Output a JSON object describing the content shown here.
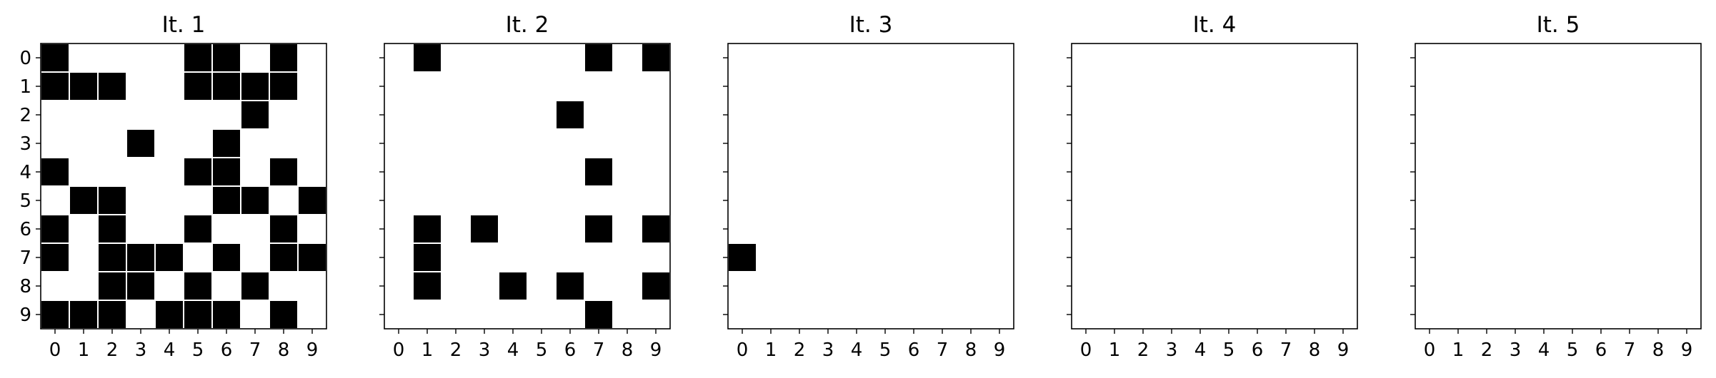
{
  "figure": {
    "background": "#ffffff",
    "cell_color": "#000000",
    "cell_edge_color": "#ffffff",
    "axis_color": "#000000"
  },
  "chart_data": [
    {
      "type": "heatmap",
      "title": "It. 1",
      "xlabel": "",
      "ylabel": "",
      "x_ticks": [
        "0",
        "1",
        "2",
        "3",
        "4",
        "5",
        "6",
        "7",
        "8",
        "9"
      ],
      "y_ticks": [
        "0",
        "1",
        "2",
        "3",
        "4",
        "5",
        "6",
        "7",
        "8",
        "9"
      ],
      "show_y_tick_labels": true,
      "grid": false,
      "values": [
        [
          1,
          0,
          0,
          0,
          0,
          1,
          1,
          0,
          1,
          0
        ],
        [
          1,
          1,
          1,
          0,
          0,
          1,
          1,
          1,
          1,
          0
        ],
        [
          0,
          0,
          0,
          0,
          0,
          0,
          0,
          1,
          0,
          0
        ],
        [
          0,
          0,
          0,
          1,
          0,
          0,
          1,
          0,
          0,
          0
        ],
        [
          1,
          0,
          0,
          0,
          0,
          1,
          1,
          0,
          1,
          0
        ],
        [
          0,
          1,
          1,
          0,
          0,
          0,
          1,
          1,
          0,
          1
        ],
        [
          1,
          0,
          1,
          0,
          0,
          1,
          0,
          0,
          1,
          0
        ],
        [
          1,
          0,
          1,
          1,
          1,
          0,
          1,
          0,
          1,
          1
        ],
        [
          0,
          0,
          1,
          1,
          0,
          1,
          0,
          1,
          0,
          0
        ],
        [
          1,
          1,
          1,
          0,
          1,
          1,
          1,
          0,
          1,
          0
        ]
      ]
    },
    {
      "type": "heatmap",
      "title": "It. 2",
      "xlabel": "",
      "ylabel": "",
      "x_ticks": [
        "0",
        "1",
        "2",
        "3",
        "4",
        "5",
        "6",
        "7",
        "8",
        "9"
      ],
      "y_ticks": [
        "0",
        "1",
        "2",
        "3",
        "4",
        "5",
        "6",
        "7",
        "8",
        "9"
      ],
      "show_y_tick_labels": false,
      "grid": false,
      "values": [
        [
          0,
          1,
          0,
          0,
          0,
          0,
          0,
          1,
          0,
          1
        ],
        [
          0,
          0,
          0,
          0,
          0,
          0,
          0,
          0,
          0,
          0
        ],
        [
          0,
          0,
          0,
          0,
          0,
          0,
          1,
          0,
          0,
          0
        ],
        [
          0,
          0,
          0,
          0,
          0,
          0,
          0,
          0,
          0,
          0
        ],
        [
          0,
          0,
          0,
          0,
          0,
          0,
          0,
          1,
          0,
          0
        ],
        [
          0,
          0,
          0,
          0,
          0,
          0,
          0,
          0,
          0,
          0
        ],
        [
          0,
          1,
          0,
          1,
          0,
          0,
          0,
          1,
          0,
          1
        ],
        [
          0,
          1,
          0,
          0,
          0,
          0,
          0,
          0,
          0,
          0
        ],
        [
          0,
          1,
          0,
          0,
          1,
          0,
          1,
          0,
          0,
          1
        ],
        [
          0,
          0,
          0,
          0,
          0,
          0,
          0,
          1,
          0,
          0
        ]
      ]
    },
    {
      "type": "heatmap",
      "title": "It. 3",
      "xlabel": "",
      "ylabel": "",
      "x_ticks": [
        "0",
        "1",
        "2",
        "3",
        "4",
        "5",
        "6",
        "7",
        "8",
        "9"
      ],
      "y_ticks": [
        "0",
        "1",
        "2",
        "3",
        "4",
        "5",
        "6",
        "7",
        "8",
        "9"
      ],
      "show_y_tick_labels": false,
      "grid": false,
      "values": [
        [
          0,
          0,
          0,
          0,
          0,
          0,
          0,
          0,
          0,
          0
        ],
        [
          0,
          0,
          0,
          0,
          0,
          0,
          0,
          0,
          0,
          0
        ],
        [
          0,
          0,
          0,
          0,
          0,
          0,
          0,
          0,
          0,
          0
        ],
        [
          0,
          0,
          0,
          0,
          0,
          0,
          0,
          0,
          0,
          0
        ],
        [
          0,
          0,
          0,
          0,
          0,
          0,
          0,
          0,
          0,
          0
        ],
        [
          0,
          0,
          0,
          0,
          0,
          0,
          0,
          0,
          0,
          0
        ],
        [
          0,
          0,
          0,
          0,
          0,
          0,
          0,
          0,
          0,
          0
        ],
        [
          1,
          0,
          0,
          0,
          0,
          0,
          0,
          0,
          0,
          0
        ],
        [
          0,
          0,
          0,
          0,
          0,
          0,
          0,
          0,
          0,
          0
        ],
        [
          0,
          0,
          0,
          0,
          0,
          0,
          0,
          0,
          0,
          0
        ]
      ]
    },
    {
      "type": "heatmap",
      "title": "It. 4",
      "xlabel": "",
      "ylabel": "",
      "x_ticks": [
        "0",
        "1",
        "2",
        "3",
        "4",
        "5",
        "6",
        "7",
        "8",
        "9"
      ],
      "y_ticks": [
        "0",
        "1",
        "2",
        "3",
        "4",
        "5",
        "6",
        "7",
        "8",
        "9"
      ],
      "show_y_tick_labels": false,
      "grid": false,
      "values": [
        [
          0,
          0,
          0,
          0,
          0,
          0,
          0,
          0,
          0,
          0
        ],
        [
          0,
          0,
          0,
          0,
          0,
          0,
          0,
          0,
          0,
          0
        ],
        [
          0,
          0,
          0,
          0,
          0,
          0,
          0,
          0,
          0,
          0
        ],
        [
          0,
          0,
          0,
          0,
          0,
          0,
          0,
          0,
          0,
          0
        ],
        [
          0,
          0,
          0,
          0,
          0,
          0,
          0,
          0,
          0,
          0
        ],
        [
          0,
          0,
          0,
          0,
          0,
          0,
          0,
          0,
          0,
          0
        ],
        [
          0,
          0,
          0,
          0,
          0,
          0,
          0,
          0,
          0,
          0
        ],
        [
          0,
          0,
          0,
          0,
          0,
          0,
          0,
          0,
          0,
          0
        ],
        [
          0,
          0,
          0,
          0,
          0,
          0,
          0,
          0,
          0,
          0
        ],
        [
          0,
          0,
          0,
          0,
          0,
          0,
          0,
          0,
          0,
          0
        ]
      ]
    },
    {
      "type": "heatmap",
      "title": "It. 5",
      "xlabel": "",
      "ylabel": "",
      "x_ticks": [
        "0",
        "1",
        "2",
        "3",
        "4",
        "5",
        "6",
        "7",
        "8",
        "9"
      ],
      "y_ticks": [
        "0",
        "1",
        "2",
        "3",
        "4",
        "5",
        "6",
        "7",
        "8",
        "9"
      ],
      "show_y_tick_labels": false,
      "grid": false,
      "values": [
        [
          0,
          0,
          0,
          0,
          0,
          0,
          0,
          0,
          0,
          0
        ],
        [
          0,
          0,
          0,
          0,
          0,
          0,
          0,
          0,
          0,
          0
        ],
        [
          0,
          0,
          0,
          0,
          0,
          0,
          0,
          0,
          0,
          0
        ],
        [
          0,
          0,
          0,
          0,
          0,
          0,
          0,
          0,
          0,
          0
        ],
        [
          0,
          0,
          0,
          0,
          0,
          0,
          0,
          0,
          0,
          0
        ],
        [
          0,
          0,
          0,
          0,
          0,
          0,
          0,
          0,
          0,
          0
        ],
        [
          0,
          0,
          0,
          0,
          0,
          0,
          0,
          0,
          0,
          0
        ],
        [
          0,
          0,
          0,
          0,
          0,
          0,
          0,
          0,
          0,
          0
        ],
        [
          0,
          0,
          0,
          0,
          0,
          0,
          0,
          0,
          0,
          0
        ],
        [
          0,
          0,
          0,
          0,
          0,
          0,
          0,
          0,
          0,
          0
        ]
      ]
    }
  ]
}
